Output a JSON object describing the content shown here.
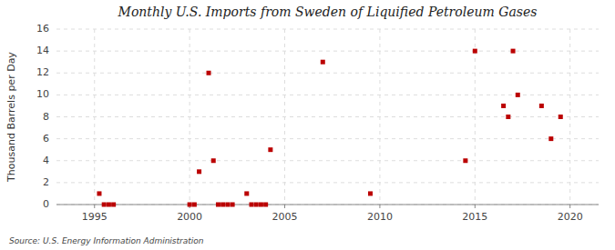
{
  "chart_data": {
    "type": "scatter",
    "title": "Monthly U.S. Imports from Sweden of Liquified Petroleum Gases",
    "y_label": "Thousand Barrels per Day",
    "source": "Source: U.S. Energy Information Administration",
    "x": [
      1995.25,
      1995.5,
      1995.75,
      1996.0,
      2000.0,
      2000.25,
      2000.5,
      2001.0,
      2001.25,
      2001.5,
      2001.75,
      2002.0,
      2002.25,
      2003.0,
      2003.25,
      2003.5,
      2003.75,
      2004.0,
      2004.25,
      2007.0,
      2009.5,
      2014.5,
      2015.0,
      2016.5,
      2016.75,
      2017.0,
      2017.25,
      2018.5,
      2019.0,
      2019.5
    ],
    "values": [
      1,
      0,
      0,
      0,
      0,
      0,
      3,
      12,
      4,
      0,
      0,
      0,
      0,
      1,
      0,
      0,
      0,
      0,
      5,
      13,
      1,
      4,
      14,
      9,
      8,
      14,
      10,
      9,
      6,
      8
    ],
    "color": "#bb0000",
    "marker": "square",
    "xlim": [
      1993.0,
      2021.5
    ],
    "ylim": [
      0,
      16
    ],
    "xticks": [
      1995,
      2000,
      2005,
      2010,
      2015,
      2020
    ],
    "yticks": [
      0,
      2,
      4,
      6,
      8,
      10,
      12,
      14,
      16
    ],
    "grid": true
  }
}
